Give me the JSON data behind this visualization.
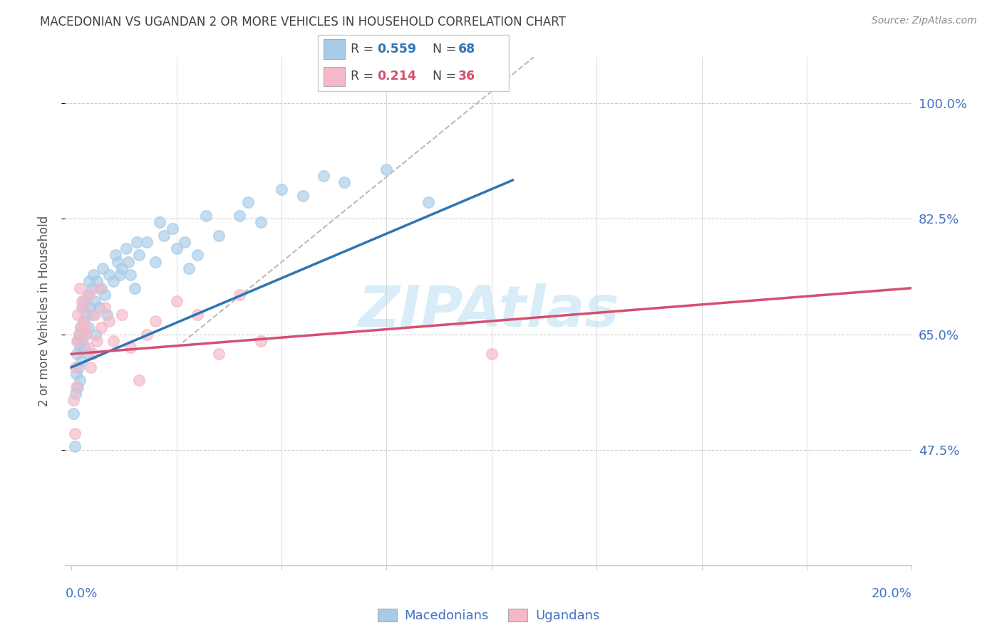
{
  "title": "MACEDONIAN VS UGANDAN 2 OR MORE VEHICLES IN HOUSEHOLD CORRELATION CHART",
  "source": "Source: ZipAtlas.com",
  "ylabel": "2 or more Vehicles in Household",
  "xlim": [
    -0.15,
    20.0
  ],
  "ylim": [
    30.0,
    107.0
  ],
  "yticks": [
    47.5,
    65.0,
    82.5,
    100.0
  ],
  "ytick_labels": [
    "47.5%",
    "65.0%",
    "82.5%",
    "100.0%"
  ],
  "macedonian_color": "#a8cce8",
  "ugandan_color": "#f4b8c8",
  "macedonian_line_color": "#2e75b6",
  "ugandan_line_color": "#d45070",
  "axis_label_color": "#4472c4",
  "title_color": "#404040",
  "source_color": "#888888",
  "watermark": "ZIPAtlas",
  "watermark_color": "#d8edf8",
  "grid_color": "#cccccc",
  "legend_R_mac": "0.559",
  "legend_N_mac": "68",
  "legend_R_uga": "0.214",
  "legend_N_uga": "36",
  "mac_x": [
    0.05,
    0.08,
    0.1,
    0.12,
    0.13,
    0.15,
    0.15,
    0.17,
    0.18,
    0.2,
    0.2,
    0.22,
    0.23,
    0.25,
    0.25,
    0.28,
    0.3,
    0.3,
    0.32,
    0.35,
    0.38,
    0.4,
    0.4,
    0.42,
    0.45,
    0.48,
    0.5,
    0.52,
    0.55,
    0.58,
    0.6,
    0.65,
    0.7,
    0.75,
    0.8,
    0.85,
    0.9,
    1.0,
    1.1,
    1.2,
    1.3,
    1.4,
    1.5,
    1.6,
    1.8,
    2.0,
    2.2,
    2.5,
    2.8,
    3.0,
    3.5,
    4.0,
    4.5,
    5.5,
    6.5,
    7.5,
    1.05,
    1.15,
    1.35,
    1.55,
    2.1,
    2.4,
    2.7,
    3.2,
    4.2,
    5.0,
    6.0,
    8.5
  ],
  "mac_y": [
    53,
    48,
    56,
    59,
    62,
    57,
    64,
    60,
    65,
    63,
    58,
    66,
    61,
    69,
    64,
    67,
    70,
    63,
    65,
    68,
    62,
    71,
    66,
    73,
    69,
    72,
    68,
    74,
    70,
    65,
    73,
    69,
    72,
    75,
    71,
    68,
    74,
    73,
    76,
    75,
    78,
    74,
    72,
    77,
    79,
    76,
    80,
    78,
    75,
    77,
    80,
    83,
    82,
    86,
    88,
    90,
    77,
    74,
    76,
    79,
    82,
    81,
    79,
    83,
    85,
    87,
    89,
    85
  ],
  "uga_x": [
    0.05,
    0.08,
    0.1,
    0.13,
    0.15,
    0.18,
    0.2,
    0.22,
    0.25,
    0.28,
    0.3,
    0.35,
    0.4,
    0.45,
    0.5,
    0.55,
    0.6,
    0.7,
    0.8,
    0.9,
    1.0,
    1.2,
    1.4,
    1.6,
    1.8,
    2.0,
    2.5,
    3.0,
    3.5,
    4.0,
    4.5,
    10.0,
    0.12,
    0.32,
    0.42,
    0.65
  ],
  "uga_y": [
    55,
    50,
    60,
    64,
    68,
    65,
    72,
    66,
    70,
    69,
    67,
    65,
    63,
    60,
    62,
    68,
    64,
    66,
    69,
    67,
    64,
    68,
    63,
    58,
    65,
    67,
    70,
    68,
    62,
    71,
    64,
    62,
    57,
    66,
    71,
    72
  ]
}
